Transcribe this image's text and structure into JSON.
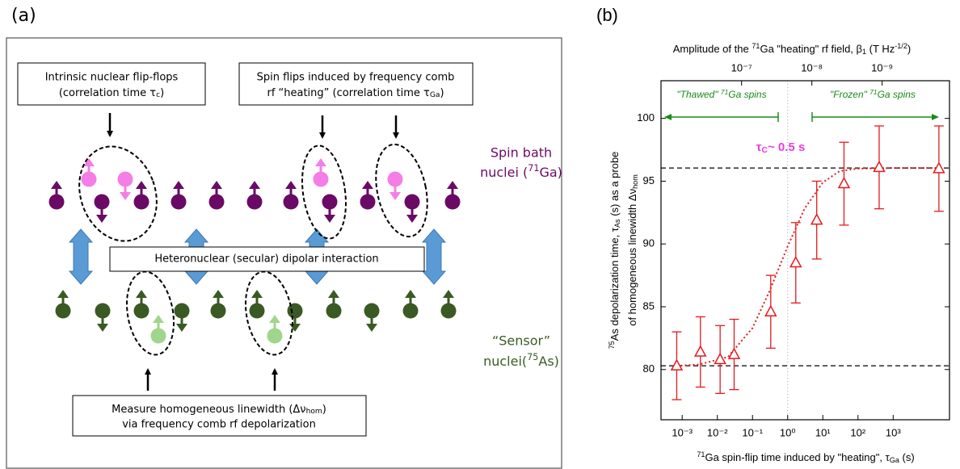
{
  "panel_a": {
    "label": "(a)",
    "box_intrinsic": [
      "Intrinsic nuclear flip-flops",
      [
        "(correlation time τ",
        {
          "sub": "c"
        },
        ")"
      ]
    ],
    "box_heating": [
      "Spin flips induced by frequency comb",
      [
        "rf “heating” (correlation time τ",
        {
          "sub": "Ga"
        },
        ")"
      ]
    ],
    "spin_bath": [
      "Spin bath",
      [
        "nuclei (",
        {
          "sup": "71"
        },
        "Ga)"
      ]
    ],
    "dipolar": "Heteronuclear (secular) dipolar interaction",
    "sensor": [
      "“Sensor”",
      [
        "nuclei(",
        {
          "sup": "75"
        },
        "As)"
      ]
    ],
    "box_measure": [
      [
        "Measure homogeneous linewidth (Δν",
        {
          "sub": "hom"
        },
        ")"
      ],
      "via frequency comb rf depolarization"
    ]
  },
  "chart_data": {
    "type": "scatter",
    "panel_label": "(b)",
    "x_label": [
      {
        "sup": "71"
      },
      "Ga spin-flip time induced by \"heating\", τ",
      {
        "sub": "Ga"
      },
      " (s)"
    ],
    "x2_label": [
      "Amplitude of the ",
      {
        "sup": "71"
      },
      "Ga \"heating\" rf field, β",
      {
        "sub": "1"
      },
      " (T Hz",
      {
        "sup": "-1/2"
      },
      ")"
    ],
    "y_label": [
      [
        {
          "sup": "75"
        },
        "As depolarization time, τ",
        {
          "sub": "As"
        },
        " (s)  as a probe"
      ],
      [
        "of homogeneous linewidth Δν",
        {
          "sub": "hom"
        }
      ]
    ],
    "xscale": "log",
    "xlim": [
      0.00025,
      40000
    ],
    "xticks": [
      {
        "value": 0.001,
        "label": "10⁻³"
      },
      {
        "value": 0.01,
        "label": "10⁻²"
      },
      {
        "value": 0.1,
        "label": "10⁻¹"
      },
      {
        "value": 1,
        "label": "10⁰"
      },
      {
        "value": 10,
        "label": "10¹"
      },
      {
        "value": 100,
        "label": "10²"
      },
      {
        "value": 1000,
        "label": "10³"
      }
    ],
    "x2scale": "log",
    "x2lim": [
      1.4e-06,
      1.1e-10
    ],
    "x2ticks": [
      {
        "value": 1e-07,
        "label": "10⁻⁷"
      },
      {
        "value": 1e-08,
        "label": "10⁻⁸"
      },
      {
        "value": 1e-09,
        "label": "10⁻⁹"
      }
    ],
    "ylim": [
      76,
      103
    ],
    "yticks": [
      80,
      85,
      90,
      95,
      100
    ],
    "color": "#e41a1c",
    "x": [
      0.0007,
      0.0033,
      0.012,
      0.03,
      0.33,
      1.7,
      6.7,
      40,
      400,
      20000
    ],
    "values": [
      80.3,
      81.4,
      80.8,
      81.2,
      84.6,
      88.5,
      91.9,
      94.8,
      96.1,
      96.0
    ],
    "errors": [
      2.7,
      2.8,
      2.7,
      2.8,
      2.9,
      3.2,
      3.1,
      3.3,
      3.3,
      3.4
    ],
    "fit": {
      "x": [
        0.0007,
        0.003,
        0.02,
        0.1,
        0.3,
        1,
        3,
        10,
        30,
        100,
        1000,
        20000
      ],
      "values": [
        80.3,
        80.4,
        81.0,
        83.3,
        86.2,
        89.8,
        92.8,
        94.9,
        95.8,
        96.0,
        96.05,
        96.05
      ]
    },
    "hlines": [
      96.05,
      80.3
    ],
    "vlines": [
      1
    ],
    "annotations": {
      "thawed": [
        "\"Thawed\" ",
        {
          "sup": "71"
        },
        "Ga spins"
      ],
      "frozen": [
        "\"Frozen\" ",
        {
          "sup": "71"
        },
        "Ga spins"
      ],
      "tau_c": [
        "τ",
        {
          "sub": "C"
        },
        "~ 0.5 s"
      ]
    }
  }
}
